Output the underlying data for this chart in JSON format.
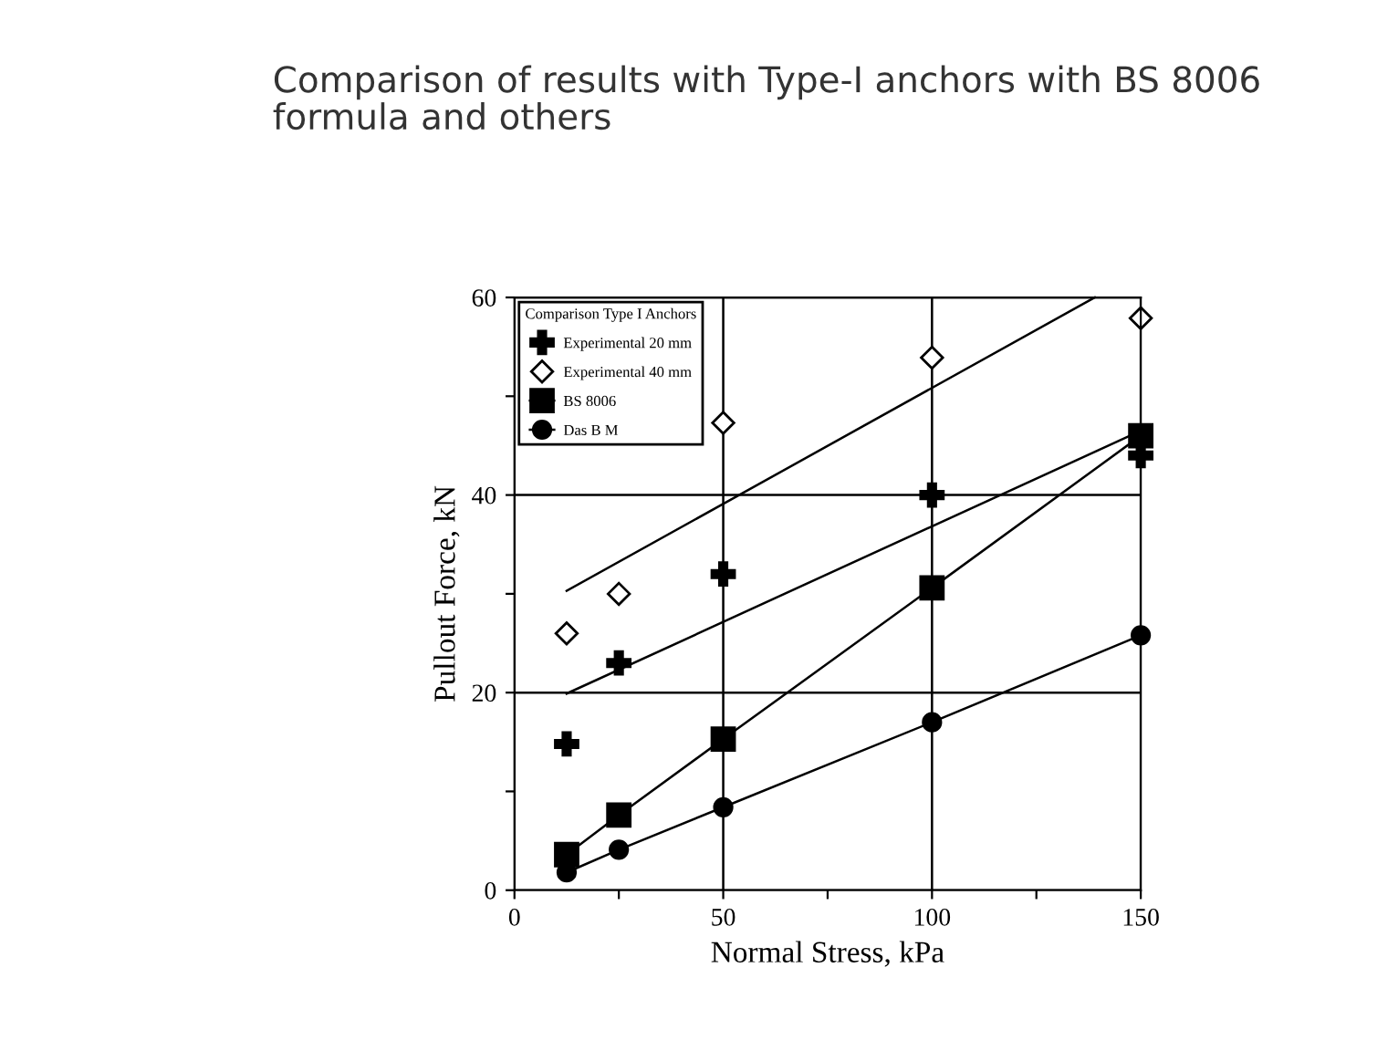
{
  "chart_data": {
    "type": "scatter",
    "title": "Comparison of results with Type-I anchors with BS 8006\nformula and others",
    "xlabel": "Normal Stress, kPa",
    "ylabel": "Pullout Force, kN",
    "legend_title": "Comparison Type I Anchors",
    "legend": "top left",
    "grid": true,
    "xlim": [
      0,
      150
    ],
    "xticks": [
      0,
      {
        "value": 25,
        "label": null
      },
      50,
      {
        "value": 75,
        "label": null
      },
      100,
      {
        "value": 125,
        "label": null
      },
      150
    ],
    "ylim": [
      0,
      60
    ],
    "yticks": [
      0,
      {
        "value": 10,
        "label": null
      },
      20,
      {
        "value": 30,
        "label": null
      },
      40,
      {
        "value": 50,
        "label": null
      },
      60
    ],
    "x": [
      12.5,
      25,
      50,
      100,
      150
    ],
    "series": [
      {
        "name": "Experimental 20 mm",
        "marker": "cross",
        "color": "#000000",
        "values": [
          14.8,
          23,
          32,
          40,
          44
        ]
      },
      {
        "name": "Experimental 40 mm",
        "marker": "diamond",
        "color": "#000000",
        "values": [
          26,
          30,
          47.3,
          53.9,
          57.9
        ]
      },
      {
        "name": "BS 8006",
        "type": "line",
        "marker": "square",
        "color": "#000000",
        "values": [
          3.6,
          7.6,
          15.3,
          30.6,
          46
        ]
      },
      {
        "name": "Das B M",
        "type": "line",
        "marker": "circle",
        "color": "#000000",
        "values": [
          1.8,
          4.1,
          8.4,
          17.0,
          25.8
        ]
      },
      {
        "type": "line",
        "marker": "none",
        "color": "#000000",
        "x": [
          12.5,
          139
        ],
        "values": [
          30.3,
          60
        ]
      },
      {
        "type": "line",
        "marker": "none",
        "color": "#000000",
        "x": [
          12.5,
          150
        ],
        "values": [
          19.9,
          46.5
        ]
      }
    ]
  }
}
